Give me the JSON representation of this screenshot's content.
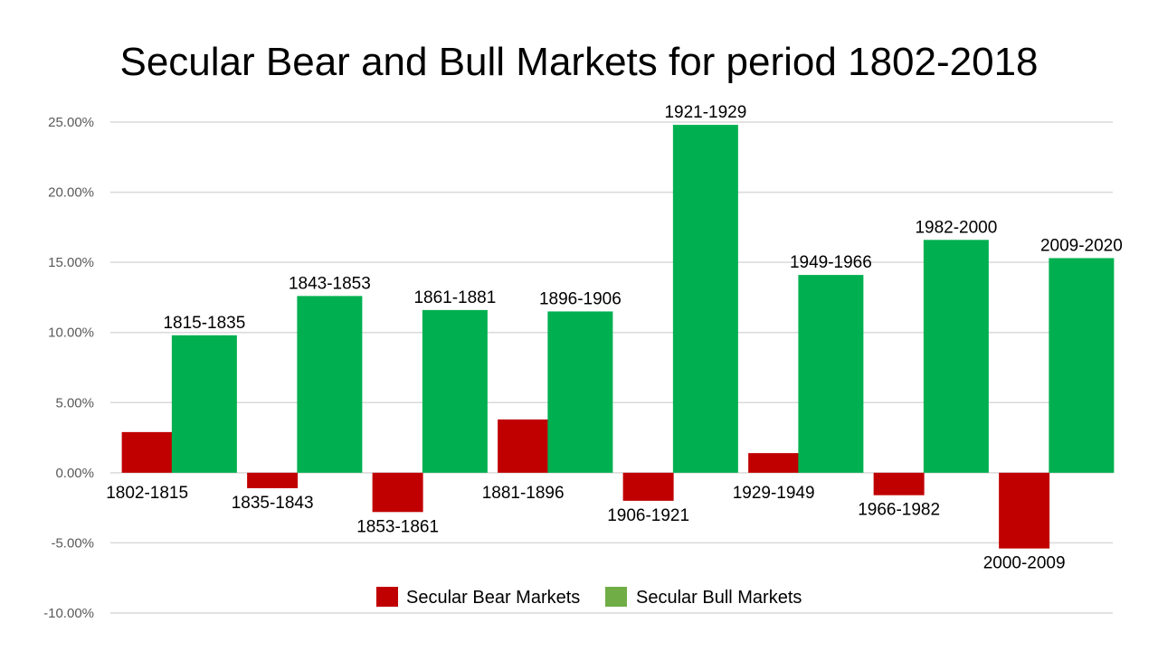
{
  "chart_data": {
    "type": "bar",
    "title": "Secular Bear and Bull Markets for period 1802-2018",
    "ylim": [
      -10,
      25
    ],
    "yticks": [
      -10,
      -5,
      0,
      5,
      10,
      15,
      20,
      25
    ],
    "ytick_labels": [
      "-10.00%",
      "-5.00%",
      "0.00%",
      "5.00%",
      "10.00%",
      "15.00%",
      "20.00%",
      "25.00%"
    ],
    "grid": true,
    "legend_position": "bottom",
    "colors": {
      "bear": "#C00000",
      "bull": "#00B050",
      "bull_legend": "#70AD47"
    },
    "series": [
      {
        "name": "Secular Bear Markets",
        "key": "bear"
      },
      {
        "name": "Secular Bull Markets",
        "key": "bull"
      }
    ],
    "bars": [
      {
        "label": "1802-1815",
        "value": 2.9,
        "type": "bear"
      },
      {
        "label": "1815-1835",
        "value": 9.8,
        "type": "bull"
      },
      {
        "label": "1835-1843",
        "value": -1.1,
        "type": "bear"
      },
      {
        "label": "1843-1853",
        "value": 12.6,
        "type": "bull"
      },
      {
        "label": "1853-1861",
        "value": -2.8,
        "type": "bear"
      },
      {
        "label": "1861-1881",
        "value": 11.6,
        "type": "bull"
      },
      {
        "label": "1881-1896",
        "value": 3.8,
        "type": "bear"
      },
      {
        "label": "1896-1906",
        "value": 11.5,
        "type": "bull"
      },
      {
        "label": "1906-1921",
        "value": -2.0,
        "type": "bear"
      },
      {
        "label": "1921-1929",
        "value": 24.8,
        "type": "bull"
      },
      {
        "label": "1929-1949",
        "value": 1.4,
        "type": "bear"
      },
      {
        "label": "1949-1966",
        "value": 14.1,
        "type": "bull"
      },
      {
        "label": "1966-1982",
        "value": -1.6,
        "type": "bear"
      },
      {
        "label": "1982-2000",
        "value": 16.6,
        "type": "bull"
      },
      {
        "label": "2000-2009",
        "value": -5.4,
        "type": "bear"
      },
      {
        "label": "2009-2020",
        "value": 15.3,
        "type": "bull"
      }
    ]
  }
}
